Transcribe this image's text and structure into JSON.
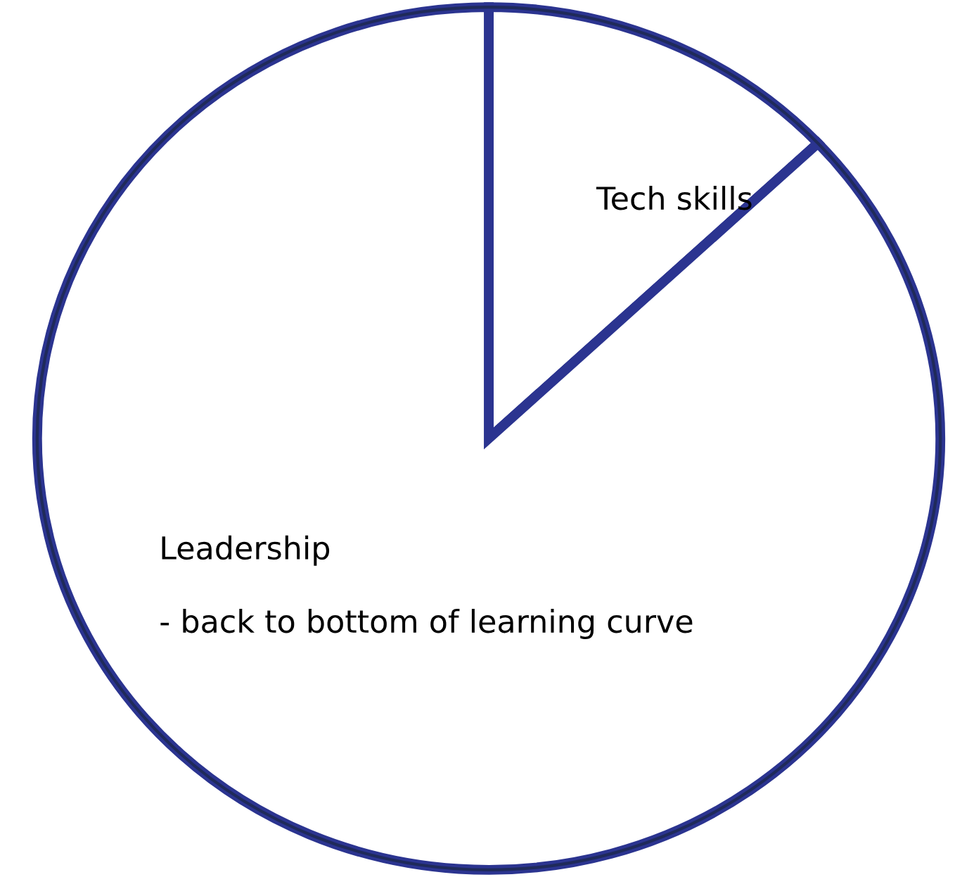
{
  "chart_data": {
    "type": "pie",
    "categories": [
      "Tech skills",
      "Leadership"
    ],
    "values": [
      13,
      87
    ],
    "colors": [
      "#ffffff",
      "#ffffff"
    ],
    "annotations": [
      "- back to bottom of learning curve"
    ]
  }
}
